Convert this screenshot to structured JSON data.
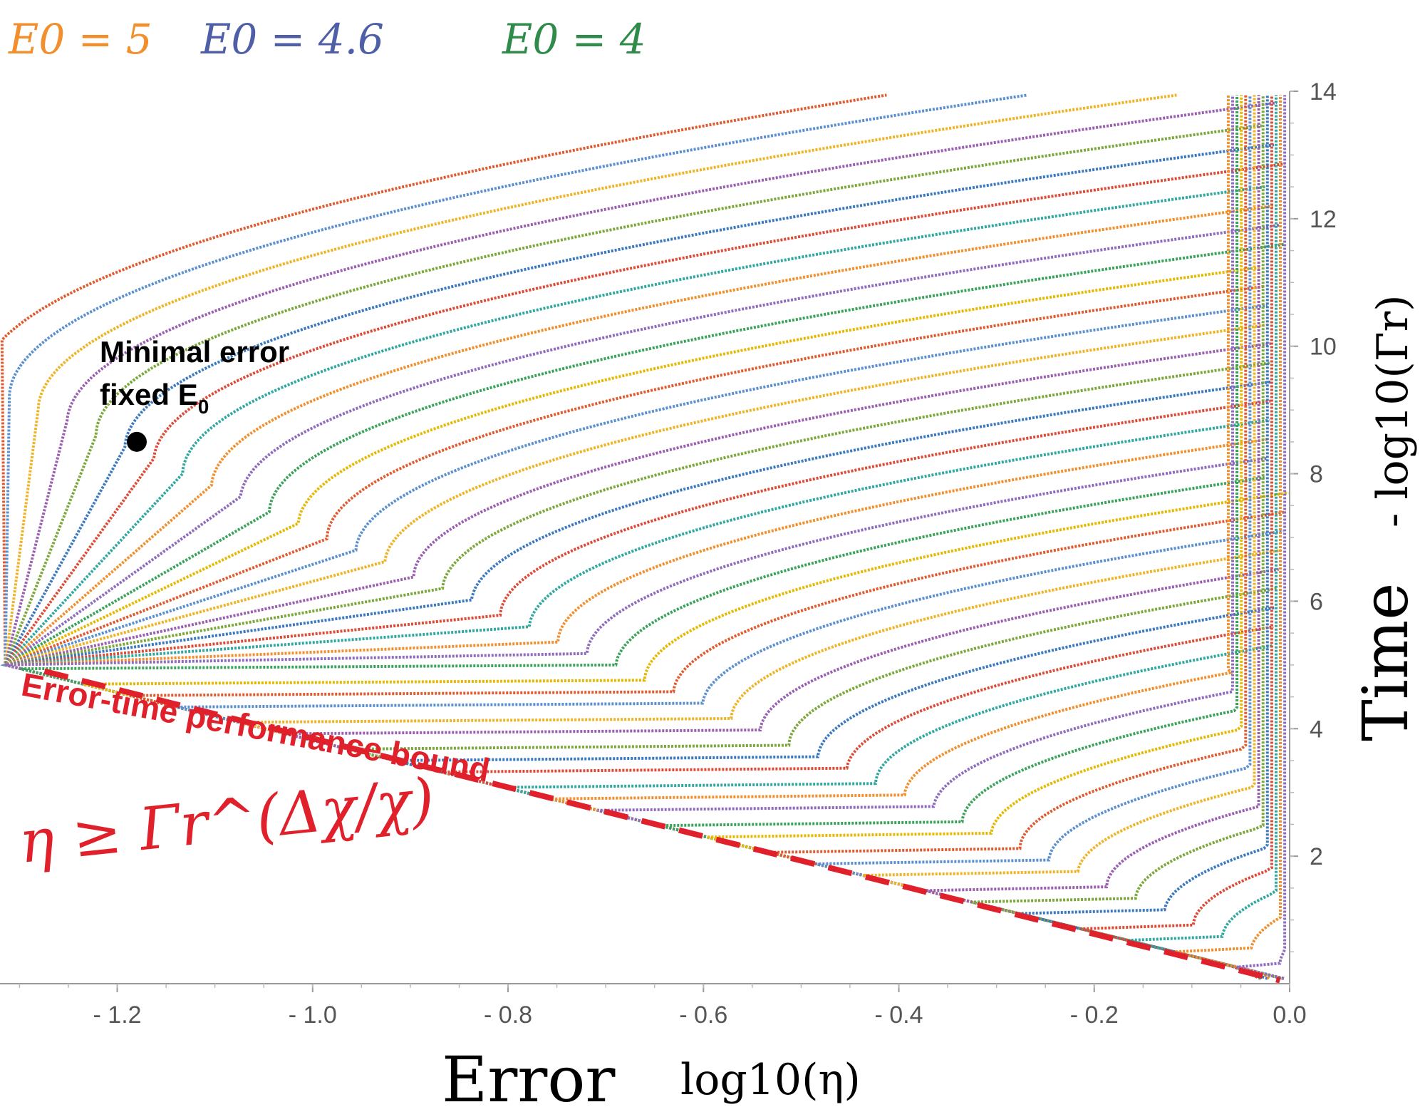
{
  "chart_data": {
    "type": "scatter",
    "title": "",
    "xlabel": "Error",
    "xlabel_math": "log10(η)",
    "ylabel": "Time",
    "ylabel_math": "- log10(Γr)",
    "xlim": [
      -1.32,
      0.0
    ],
    "ylim": [
      0.0,
      14.0
    ],
    "x_ticks": [
      "- 1.2",
      "- 1.0",
      "- 0.8",
      "- 0.6",
      "- 0.4",
      "- 0.2",
      "0.0"
    ],
    "x_tick_values": [
      -1.2,
      -1.0,
      -0.8,
      -0.6,
      -0.4,
      -0.2,
      0.0
    ],
    "y_ticks": [
      "2",
      "4",
      "6",
      "8",
      "10",
      "12",
      "14"
    ],
    "y_tick_values": [
      2,
      4,
      6,
      8,
      10,
      12,
      14
    ],
    "grid": false,
    "legend": [
      {
        "text": "E0 = 5",
        "color": "#f28e2b"
      },
      {
        "text": "E0 = 4.6",
        "color": "#4e5fa8"
      },
      {
        "text": "E0 = 4",
        "color": "#2e8b4a"
      }
    ],
    "legend_position": "top-left",
    "curve_family": {
      "count": 46,
      "description_text": "",
      "marker": "dot",
      "palette": [
        "#e15a2e",
        "#5a8fd0",
        "#f0b323",
        "#9a5fb0",
        "#7aa83a",
        "#3a78c0",
        "#dd4a36",
        "#2fa8a0",
        "#f28e2b",
        "#8e6bbd",
        "#3aa35a",
        "#e6b800"
      ]
    },
    "annotations": {
      "minimal_point": {
        "x": -1.18,
        "y": 8.5,
        "label_line1": "Minimal error",
        "label_line2": "fixed E",
        "label_sub": "0"
      },
      "bound_label": "Error-time performance bound",
      "bound_formula": "η ≥ Γr^(Δχ/χ)",
      "bound_line": {
        "x_start": -1.3,
        "y_start": 4.9,
        "x_end": -0.01,
        "y_end": 0.05,
        "color": "#e0202a",
        "style": "dashed"
      }
    }
  }
}
